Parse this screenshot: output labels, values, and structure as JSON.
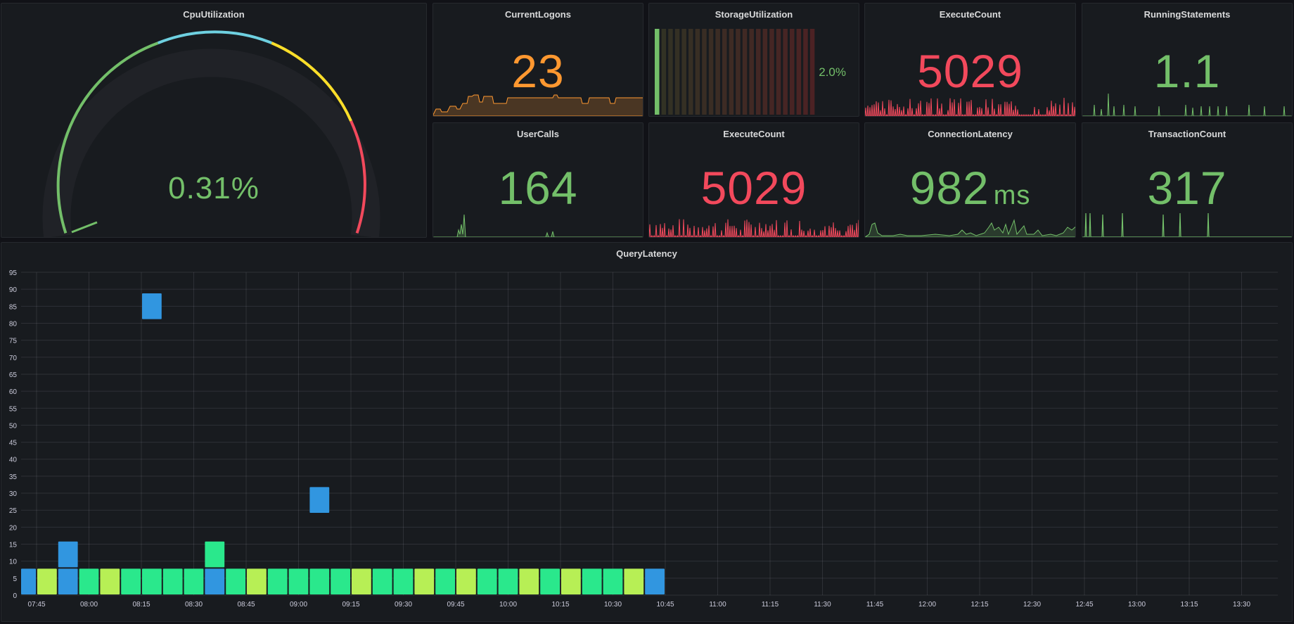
{
  "colors": {
    "green": "#73bf69",
    "orange": "#ff9830",
    "red": "#f2495c",
    "blue": "#299ee0",
    "yellow": "#fade2a",
    "cyan": "#6ed0e0",
    "cell_blue": "#3196e0",
    "cell_teal": "#2ae88c",
    "cell_lime": "#b7ef55"
  },
  "panels": {
    "cpu": {
      "title": "CpuUtilization",
      "value": "0.31%",
      "gauge_fraction": 0.0031
    },
    "current_logons": {
      "title": "CurrentLogons",
      "value": "23"
    },
    "storage": {
      "title": "StorageUtilization",
      "value": "2.0%",
      "fraction": 0.02
    },
    "execute_count_1": {
      "title": "ExecuteCount",
      "value": "5029"
    },
    "running_statements": {
      "title": "RunningStatements",
      "value": "1.1"
    },
    "user_calls": {
      "title": "UserCalls",
      "value": "164"
    },
    "execute_count_2": {
      "title": "ExecuteCount",
      "value": "5029"
    },
    "connection_latency": {
      "title": "ConnectionLatency",
      "value": "982",
      "unit": "ms"
    },
    "transaction_count": {
      "title": "TransactionCount",
      "value": "317"
    }
  },
  "chart_data": {
    "type": "heatmap",
    "title": "QueryLatency",
    "xlabel": "",
    "ylabel": "",
    "x_ticks": [
      "07:45",
      "08:00",
      "08:15",
      "08:30",
      "08:45",
      "09:00",
      "09:15",
      "09:30",
      "09:45",
      "10:00",
      "10:15",
      "10:30",
      "10:45",
      "11:00",
      "11:15",
      "11:30",
      "11:45",
      "12:00",
      "12:15",
      "12:30",
      "12:45",
      "13:00",
      "13:15",
      "13:30"
    ],
    "y_ticks": [
      0,
      5,
      10,
      15,
      20,
      25,
      30,
      35,
      40,
      45,
      50,
      55,
      60,
      65,
      70,
      75,
      80,
      85,
      90,
      95
    ],
    "ylim": [
      0,
      95
    ],
    "bucket_minutes": 6,
    "x_start": "07:40",
    "grid": true,
    "cells": [
      {
        "t": "07:42",
        "y0": 0,
        "y1": 8,
        "color": "blue"
      },
      {
        "t": "07:48",
        "y0": 0,
        "y1": 8,
        "color": "lime"
      },
      {
        "t": "07:54",
        "y0": 0,
        "y1": 8,
        "color": "blue"
      },
      {
        "t": "07:54",
        "y0": 8,
        "y1": 16,
        "color": "blue"
      },
      {
        "t": "08:00",
        "y0": 0,
        "y1": 8,
        "color": "teal"
      },
      {
        "t": "08:06",
        "y0": 0,
        "y1": 8,
        "color": "lime"
      },
      {
        "t": "08:12",
        "y0": 0,
        "y1": 8,
        "color": "teal"
      },
      {
        "t": "08:18",
        "y0": 0,
        "y1": 8,
        "color": "teal"
      },
      {
        "t": "08:18",
        "y0": 81,
        "y1": 89,
        "color": "blue"
      },
      {
        "t": "08:24",
        "y0": 0,
        "y1": 8,
        "color": "teal"
      },
      {
        "t": "08:30",
        "y0": 0,
        "y1": 8,
        "color": "teal"
      },
      {
        "t": "08:36",
        "y0": 0,
        "y1": 8,
        "color": "blue"
      },
      {
        "t": "08:36",
        "y0": 8,
        "y1": 16,
        "color": "teal"
      },
      {
        "t": "08:42",
        "y0": 0,
        "y1": 8,
        "color": "teal"
      },
      {
        "t": "08:48",
        "y0": 0,
        "y1": 8,
        "color": "lime"
      },
      {
        "t": "08:54",
        "y0": 0,
        "y1": 8,
        "color": "teal"
      },
      {
        "t": "09:00",
        "y0": 0,
        "y1": 8,
        "color": "teal"
      },
      {
        "t": "09:06",
        "y0": 0,
        "y1": 8,
        "color": "teal"
      },
      {
        "t": "09:06",
        "y0": 24,
        "y1": 32,
        "color": "blue"
      },
      {
        "t": "09:12",
        "y0": 0,
        "y1": 8,
        "color": "teal"
      },
      {
        "t": "09:18",
        "y0": 0,
        "y1": 8,
        "color": "lime"
      },
      {
        "t": "09:24",
        "y0": 0,
        "y1": 8,
        "color": "teal"
      },
      {
        "t": "09:30",
        "y0": 0,
        "y1": 8,
        "color": "teal"
      },
      {
        "t": "09:36",
        "y0": 0,
        "y1": 8,
        "color": "lime"
      },
      {
        "t": "09:42",
        "y0": 0,
        "y1": 8,
        "color": "teal"
      },
      {
        "t": "09:48",
        "y0": 0,
        "y1": 8,
        "color": "lime"
      },
      {
        "t": "09:54",
        "y0": 0,
        "y1": 8,
        "color": "teal"
      },
      {
        "t": "10:00",
        "y0": 0,
        "y1": 8,
        "color": "teal"
      },
      {
        "t": "10:06",
        "y0": 0,
        "y1": 8,
        "color": "lime"
      },
      {
        "t": "10:12",
        "y0": 0,
        "y1": 8,
        "color": "teal"
      },
      {
        "t": "10:18",
        "y0": 0,
        "y1": 8,
        "color": "lime"
      },
      {
        "t": "10:24",
        "y0": 0,
        "y1": 8,
        "color": "teal"
      },
      {
        "t": "10:30",
        "y0": 0,
        "y1": 8,
        "color": "teal"
      },
      {
        "t": "10:36",
        "y0": 0,
        "y1": 8,
        "color": "lime"
      },
      {
        "t": "10:42",
        "y0": 0,
        "y1": 8,
        "color": "blue"
      }
    ]
  }
}
